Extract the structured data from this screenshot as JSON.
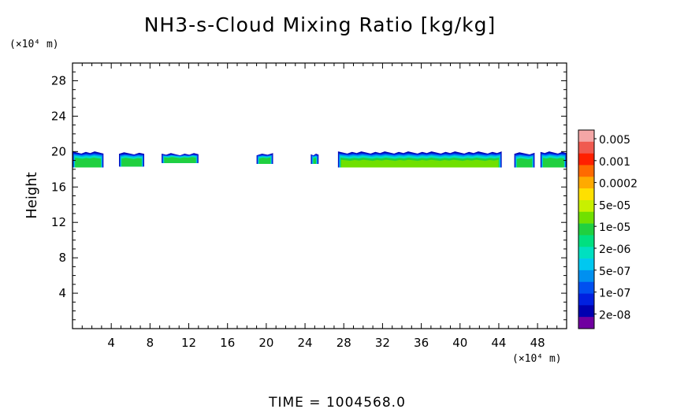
{
  "chart_data": {
    "type": "heatmap",
    "title": "NH3-s-Cloud Mixing Ratio [kg/kg]",
    "ylabel": "Height",
    "y_unit_label": "(×10⁴ m)",
    "x_unit_label": "(×10⁴ m)",
    "xlim": [
      0,
      51
    ],
    "ylim": [
      0,
      30
    ],
    "x_ticks": [
      "4",
      "8",
      "12",
      "16",
      "20",
      "24",
      "28",
      "32",
      "36",
      "40",
      "44",
      "48"
    ],
    "x_tick_values": [
      4,
      8,
      12,
      16,
      20,
      24,
      28,
      32,
      36,
      40,
      44,
      48
    ],
    "y_ticks": [
      "4",
      "8",
      "12",
      "16",
      "20",
      "24",
      "28"
    ],
    "y_tick_values": [
      4,
      8,
      12,
      16,
      20,
      24,
      28
    ],
    "grid": false,
    "legend_position": "right",
    "colorbar": {
      "labels": [
        "0.005",
        "0.001",
        "0.0002",
        "5e-05",
        "1e-05",
        "2e-06",
        "5e-07",
        "1e-07",
        "2e-08"
      ],
      "colors_top_to_bottom": [
        "#f4a6a6",
        "#f05a50",
        "#ff2000",
        "#ff6a00",
        "#ffaa00",
        "#ffe000",
        "#c8f000",
        "#70e000",
        "#20d040",
        "#00e080",
        "#00e0c0",
        "#00c8f0",
        "#0090f0",
        "#0050f0",
        "#0020e0",
        "#0000b0",
        "#7000a0"
      ]
    },
    "cloud_segments": [
      {
        "x0": 0.0,
        "x1": 3.2,
        "y_bottom": 18.2,
        "y_top": 19.9
      },
      {
        "x0": 4.8,
        "x1": 7.4,
        "y_bottom": 18.3,
        "y_top": 19.8
      },
      {
        "x0": 9.2,
        "x1": 13.0,
        "y_bottom": 18.7,
        "y_top": 19.7
      },
      {
        "x0": 19.0,
        "x1": 20.7,
        "y_bottom": 18.6,
        "y_top": 19.7
      },
      {
        "x0": 24.6,
        "x1": 25.4,
        "y_bottom": 18.6,
        "y_top": 19.7
      },
      {
        "x0": 27.4,
        "x1": 44.3,
        "y_bottom": 18.2,
        "y_top": 19.9
      },
      {
        "x0": 45.6,
        "x1": 47.7,
        "y_bottom": 18.2,
        "y_top": 19.8
      },
      {
        "x0": 48.3,
        "x1": 51.0,
        "y_bottom": 18.2,
        "y_top": 19.9
      }
    ]
  },
  "footer": {
    "time_label": "TIME  =  1004568.0"
  }
}
